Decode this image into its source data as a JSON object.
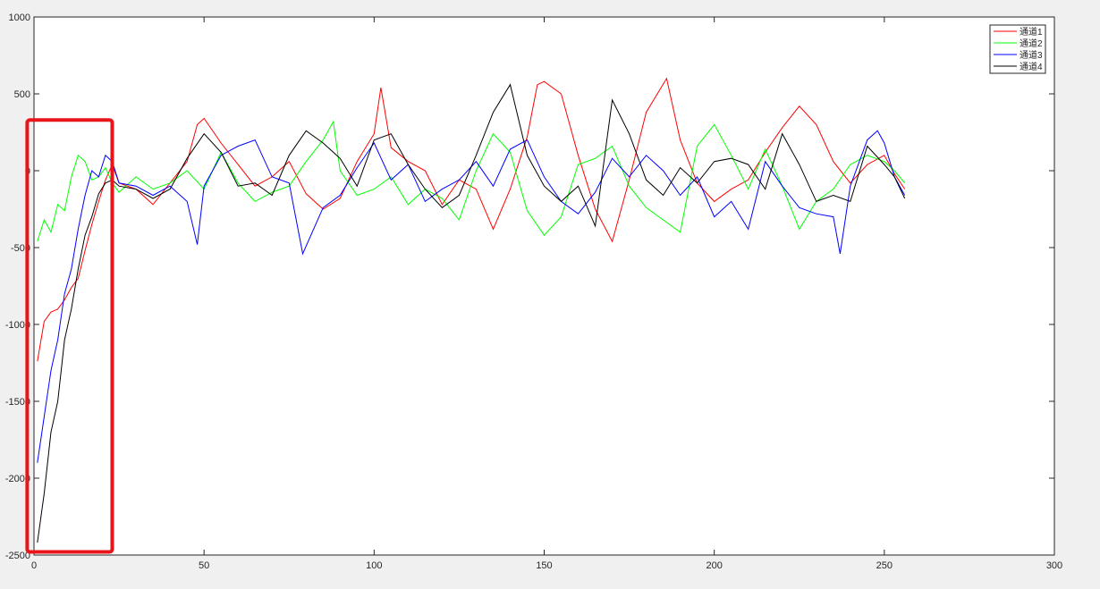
{
  "chart_data": {
    "type": "line",
    "xlim": [
      0,
      300
    ],
    "ylim": [
      -2500,
      1000
    ],
    "x_ticks": [
      0,
      50,
      100,
      150,
      200,
      250,
      300
    ],
    "y_ticks": [
      -2500,
      -2000,
      -1500,
      -1000,
      -500,
      0,
      500,
      1000
    ],
    "x_tick_labels": [
      "0",
      "50",
      "100",
      "150",
      "200",
      "250",
      "300"
    ],
    "y_tick_labels": [
      "-2500",
      "-2000",
      "-1500",
      "-1000",
      "-500",
      "0",
      "500",
      "1000"
    ],
    "grid": false,
    "legend_position": "top-right",
    "highlight_box": {
      "x": [
        -2,
        23
      ],
      "y": [
        -2480,
        330
      ],
      "color": "#e8161b"
    },
    "series": [
      {
        "name": "通道1",
        "color": "#ff0000",
        "x": [
          1,
          3,
          5,
          7,
          9,
          11,
          13,
          15,
          17,
          19,
          21,
          23,
          25,
          30,
          35,
          40,
          45,
          48,
          50,
          55,
          60,
          65,
          70,
          75,
          80,
          85,
          90,
          95,
          100,
          102,
          105,
          110,
          115,
          120,
          125,
          130,
          135,
          140,
          145,
          148,
          150,
          155,
          160,
          165,
          170,
          175,
          180,
          186,
          190,
          195,
          200,
          205,
          210,
          215,
          220,
          225,
          230,
          235,
          240,
          245,
          250,
          253,
          256
        ],
        "y": [
          -1240,
          -980,
          -920,
          -900,
          -840,
          -760,
          -700,
          -520,
          -350,
          -200,
          -60,
          40,
          -80,
          -120,
          -220,
          -80,
          60,
          300,
          340,
          180,
          40,
          -100,
          -40,
          60,
          -150,
          -250,
          -180,
          60,
          240,
          540,
          150,
          60,
          0,
          -220,
          -60,
          -120,
          -380,
          -120,
          220,
          560,
          580,
          500,
          100,
          -250,
          -460,
          -60,
          380,
          600,
          200,
          -80,
          -200,
          -120,
          -60,
          120,
          280,
          420,
          300,
          60,
          -80,
          40,
          100,
          -20,
          -120
        ]
      },
      {
        "name": "通道2",
        "color": "#00ff00",
        "x": [
          1,
          3,
          5,
          7,
          9,
          11,
          13,
          15,
          17,
          19,
          21,
          23,
          25,
          30,
          35,
          40,
          45,
          50,
          55,
          60,
          65,
          70,
          75,
          80,
          85,
          88,
          90,
          95,
          100,
          105,
          110,
          115,
          120,
          125,
          130,
          135,
          140,
          145,
          150,
          155,
          160,
          165,
          170,
          175,
          180,
          185,
          190,
          195,
          200,
          205,
          210,
          215,
          220,
          225,
          230,
          235,
          240,
          245,
          250,
          253,
          256
        ],
        "y": [
          -460,
          -320,
          -400,
          -220,
          -260,
          -40,
          100,
          60,
          -60,
          -40,
          20,
          -80,
          -140,
          -40,
          -120,
          -80,
          0,
          -120,
          120,
          -80,
          -200,
          -140,
          -100,
          60,
          200,
          320,
          0,
          -160,
          -120,
          -40,
          -220,
          -120,
          -180,
          -320,
          0,
          240,
          120,
          -260,
          -420,
          -300,
          40,
          80,
          160,
          -100,
          -240,
          -320,
          -400,
          160,
          300,
          100,
          -120,
          140,
          -100,
          -380,
          -200,
          -120,
          40,
          100,
          60,
          0,
          -80
        ]
      },
      {
        "name": "通道3",
        "color": "#0000ff",
        "x": [
          1,
          3,
          5,
          7,
          9,
          11,
          13,
          15,
          17,
          19,
          21,
          23,
          25,
          30,
          35,
          40,
          45,
          48,
          50,
          55,
          60,
          65,
          70,
          75,
          79,
          85,
          90,
          95,
          100,
          105,
          110,
          115,
          120,
          125,
          130,
          135,
          140,
          145,
          150,
          155,
          160,
          165,
          170,
          175,
          180,
          185,
          190,
          195,
          200,
          205,
          210,
          215,
          220,
          225,
          230,
          235,
          237,
          240,
          245,
          248,
          250,
          253,
          256
        ],
        "y": [
          -1900,
          -1600,
          -1300,
          -1100,
          -800,
          -640,
          -380,
          -160,
          0,
          -40,
          100,
          60,
          -80,
          -100,
          -160,
          -100,
          -200,
          -480,
          -100,
          100,
          160,
          200,
          -40,
          -80,
          -540,
          -240,
          -160,
          20,
          180,
          -60,
          40,
          -200,
          -120,
          -60,
          60,
          -100,
          140,
          200,
          -40,
          -200,
          -280,
          -140,
          80,
          -40,
          100,
          0,
          -160,
          -40,
          -300,
          -200,
          -380,
          60,
          -100,
          -240,
          -280,
          -300,
          -540,
          -100,
          200,
          260,
          180,
          -40,
          -160
        ]
      },
      {
        "name": "通道4",
        "color": "#000000",
        "x": [
          1,
          3,
          5,
          7,
          9,
          11,
          13,
          15,
          17,
          19,
          21,
          23,
          25,
          30,
          35,
          40,
          45,
          50,
          55,
          60,
          65,
          70,
          75,
          80,
          85,
          90,
          95,
          100,
          105,
          110,
          115,
          120,
          125,
          130,
          135,
          140,
          145,
          150,
          155,
          160,
          165,
          170,
          175,
          180,
          185,
          190,
          195,
          200,
          205,
          210,
          215,
          220,
          225,
          230,
          235,
          240,
          245,
          250,
          253,
          256
        ],
        "y": [
          -2420,
          -2100,
          -1700,
          -1500,
          -1100,
          -900,
          -640,
          -420,
          -300,
          -150,
          -80,
          -60,
          -100,
          -120,
          -180,
          -120,
          80,
          240,
          120,
          -100,
          -80,
          -160,
          100,
          260,
          180,
          80,
          -100,
          200,
          240,
          40,
          -120,
          -240,
          -160,
          100,
          380,
          560,
          100,
          -100,
          -200,
          -100,
          -360,
          460,
          240,
          -60,
          -160,
          20,
          -80,
          60,
          80,
          40,
          -120,
          240,
          40,
          -200,
          -160,
          -200,
          160,
          40,
          -40,
          -180
        ]
      }
    ]
  }
}
